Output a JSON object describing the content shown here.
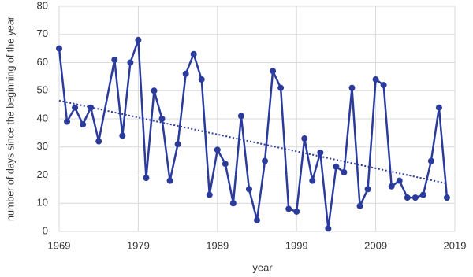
{
  "chart_data": {
    "type": "line",
    "xlabel": "year",
    "ylabel": "number of days since the beginning of the year",
    "x": [
      1969,
      1970,
      1971,
      1972,
      1973,
      1974,
      1976,
      1977,
      1978,
      1979,
      1980,
      1981,
      1982,
      1983,
      1984,
      1985,
      1986,
      1987,
      1988,
      1989,
      1990,
      1991,
      1992,
      1993,
      1994,
      1995,
      1996,
      1997,
      1998,
      1999,
      2000,
      2001,
      2002,
      2003,
      2004,
      2005,
      2006,
      2007,
      2008,
      2009,
      2010,
      2011,
      2012,
      2013,
      2014,
      2015,
      2016,
      2017,
      2018
    ],
    "series": [
      {
        "color": "#2a3b9c",
        "values": [
          65,
          39,
          44,
          38,
          44,
          32,
          61,
          34,
          60,
          68,
          19,
          50,
          40,
          18,
          31,
          56,
          63,
          54,
          13,
          29,
          24,
          10,
          41,
          15,
          4,
          25,
          57,
          51,
          8,
          7,
          33,
          18,
          28,
          1,
          23,
          21,
          51,
          9,
          15,
          54,
          52,
          16,
          18,
          12,
          12,
          13,
          25,
          44,
          12
        ]
      }
    ],
    "trend": {
      "color": "#2a3b9c",
      "x": [
        1969,
        2018
      ],
      "values": [
        46.5,
        17
      ]
    },
    "xlim": [
      1969,
      2019
    ],
    "xticks": [
      1969,
      1979,
      1989,
      1999,
      2009,
      2019
    ],
    "ylim": [
      0,
      80
    ],
    "yticks": [
      0,
      10,
      20,
      30,
      40,
      50,
      60,
      70,
      80
    ],
    "grid": true
  }
}
